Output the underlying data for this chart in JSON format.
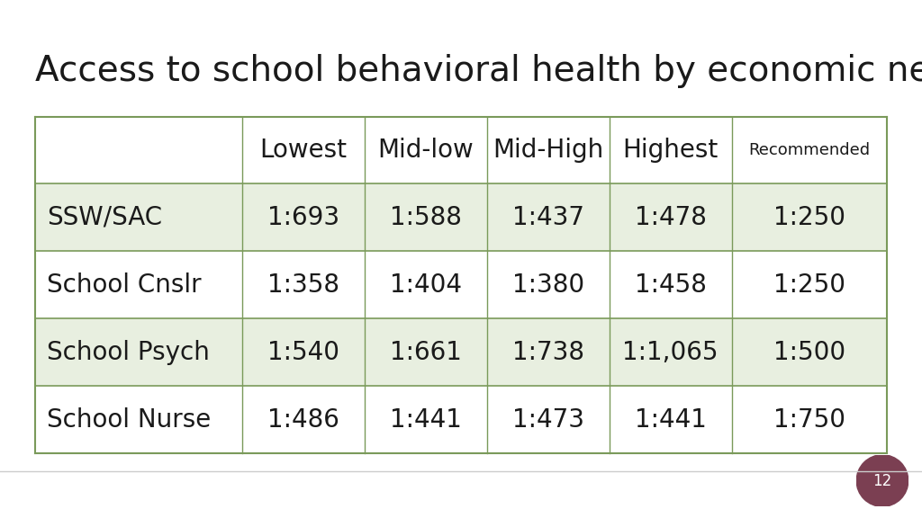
{
  "title": "Access to school behavioral health by economic need",
  "title_fontsize": 28,
  "title_color": "#1a1a1a",
  "background_color": "#ffffff",
  "col_headers": [
    "",
    "Lowest",
    "Mid-low",
    "Mid-High",
    "Highest",
    "Recommended"
  ],
  "row_data": [
    [
      "SSW/SAC",
      "1:693",
      "1:588",
      "1:437",
      "1:478",
      "1:250"
    ],
    [
      "School Cnslr",
      "1:358",
      "1:404",
      "1:380",
      "1:458",
      "1:250"
    ],
    [
      "School Psych",
      "1:540",
      "1:661",
      "1:738",
      "1:1,065",
      "1:500"
    ],
    [
      "School Nurse",
      "1:486",
      "1:441",
      "1:473",
      "1:441",
      "1:750"
    ]
  ],
  "shaded_rows": [
    0,
    2
  ],
  "row_bg_shaded": "#e8efe0",
  "row_bg_white": "#ffffff",
  "header_bg": "#ffffff",
  "border_color": "#7a9a5a",
  "text_color_dark": "#1a1a1a",
  "recommended_fontsize": 13,
  "data_fontsize": 20,
  "header_fontsize": 20,
  "row_label_fontsize": 20,
  "badge_color": "#7b3f52",
  "badge_text": "12"
}
